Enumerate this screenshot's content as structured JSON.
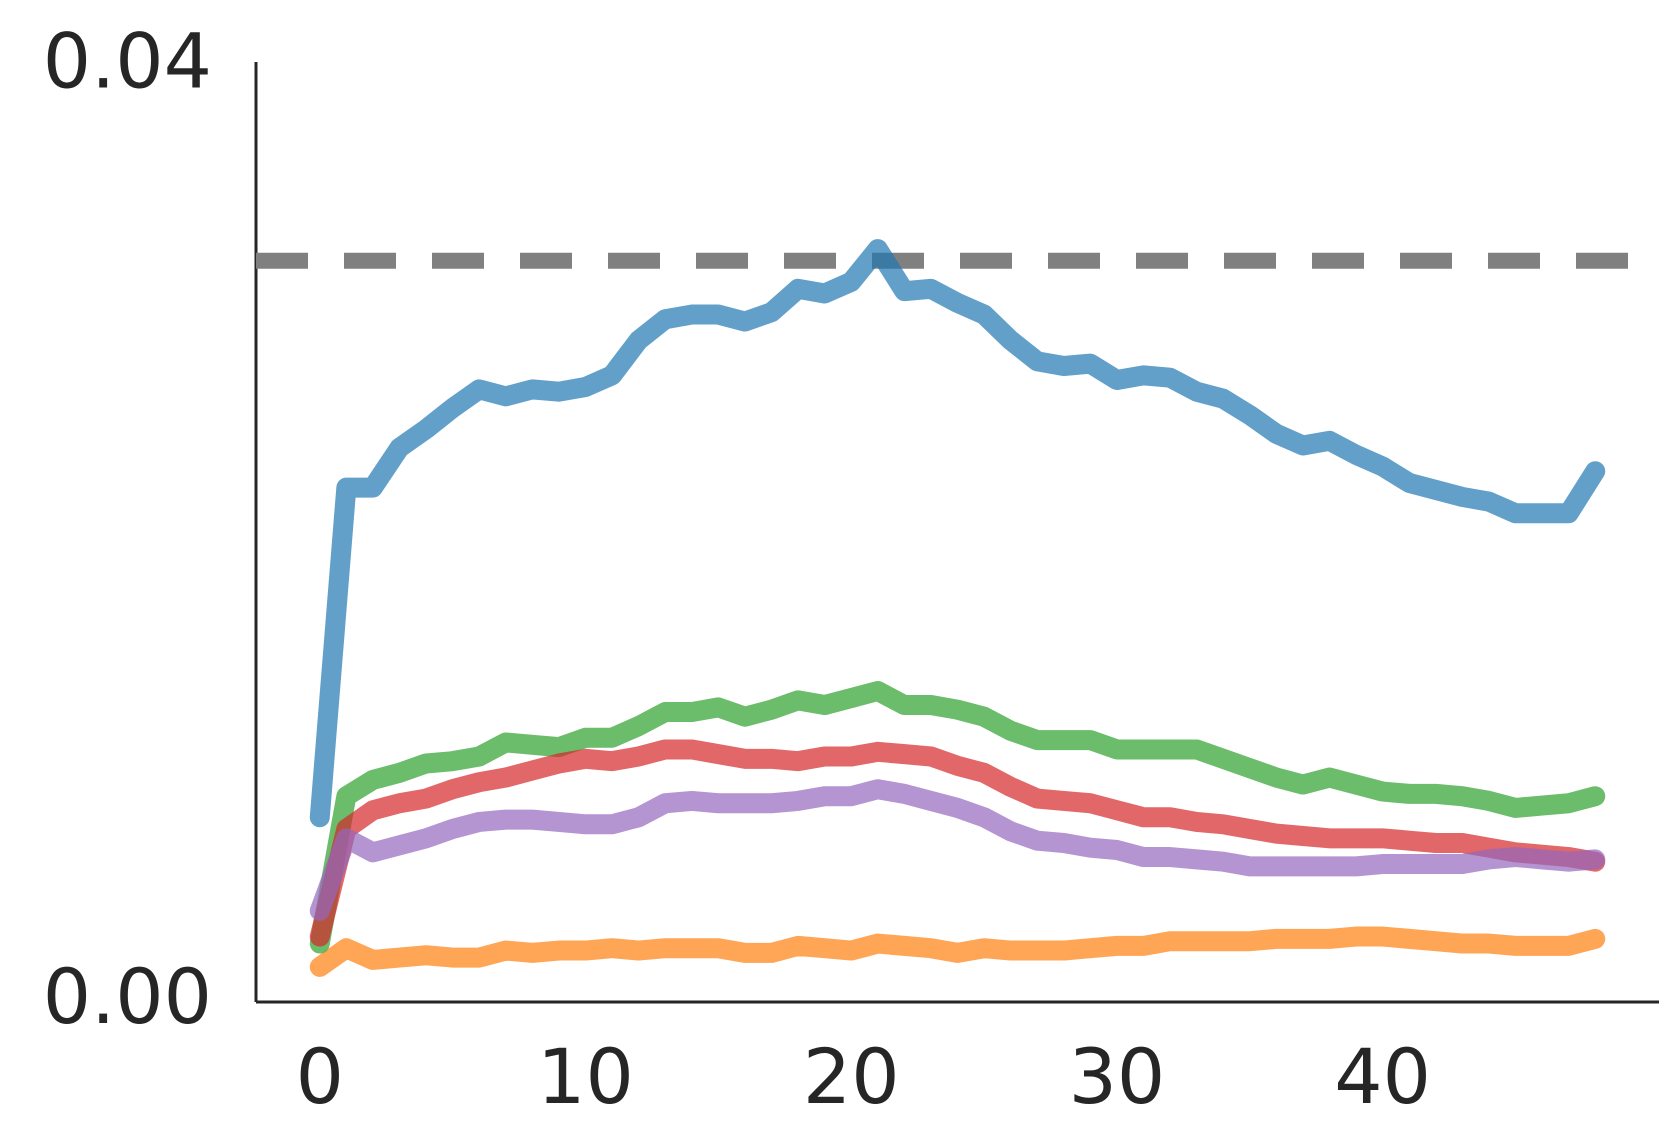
{
  "chart_data": {
    "type": "line",
    "x": [
      0,
      1,
      2,
      3,
      4,
      5,
      6,
      7,
      8,
      9,
      10,
      11,
      12,
      13,
      14,
      15,
      16,
      17,
      18,
      19,
      20,
      21,
      22,
      23,
      24,
      25,
      26,
      27,
      28,
      29,
      30,
      31,
      32,
      33,
      34,
      35,
      36,
      37,
      38,
      39,
      40,
      41,
      42,
      43,
      44,
      45,
      46,
      47,
      48
    ],
    "series": [
      {
        "color": "#1f77b4",
        "values": [
          0.0079,
          0.022,
          0.022,
          0.0237,
          0.0245,
          0.0254,
          0.0262,
          0.0259,
          0.0262,
          0.0261,
          0.0263,
          0.0268,
          0.0283,
          0.0292,
          0.0294,
          0.0294,
          0.0291,
          0.0295,
          0.0305,
          0.0303,
          0.0308,
          0.0322,
          0.0304,
          0.0305,
          0.0299,
          0.0294,
          0.0283,
          0.0274,
          0.0272,
          0.0273,
          0.0266,
          0.0268,
          0.0267,
          0.0261,
          0.0258,
          0.0251,
          0.0243,
          0.0238,
          0.024,
          0.0234,
          0.0229,
          0.0222,
          0.0219,
          0.0216,
          0.0214,
          0.0209,
          0.0209,
          0.0209,
          0.0227
        ]
      },
      {
        "color": "#ff7f0e",
        "values": [
          0.0015,
          0.0023,
          0.0018,
          0.0019,
          0.002,
          0.0019,
          0.0019,
          0.0022,
          0.0021,
          0.0022,
          0.0022,
          0.0023,
          0.0022,
          0.0023,
          0.0023,
          0.0023,
          0.0021,
          0.0021,
          0.0024,
          0.0023,
          0.0022,
          0.0025,
          0.0024,
          0.0023,
          0.0021,
          0.0023,
          0.0022,
          0.0022,
          0.0022,
          0.0023,
          0.0024,
          0.0024,
          0.0026,
          0.0026,
          0.0026,
          0.0026,
          0.0027,
          0.0027,
          0.0027,
          0.0028,
          0.0028,
          0.0027,
          0.0026,
          0.0025,
          0.0025,
          0.0024,
          0.0024,
          0.0024,
          0.0027
        ]
      },
      {
        "color": "#2ca02c",
        "values": [
          0.0025,
          0.0088,
          0.0095,
          0.0098,
          0.0102,
          0.0103,
          0.0105,
          0.0111,
          0.011,
          0.0109,
          0.0113,
          0.0113,
          0.0118,
          0.0124,
          0.0124,
          0.0126,
          0.0122,
          0.0125,
          0.0129,
          0.0127,
          0.013,
          0.0133,
          0.0127,
          0.0127,
          0.0125,
          0.0122,
          0.0116,
          0.0112,
          0.0112,
          0.0112,
          0.0108,
          0.0108,
          0.0108,
          0.0108,
          0.0104,
          0.01,
          0.0096,
          0.0093,
          0.0096,
          0.0093,
          0.009,
          0.0089,
          0.0089,
          0.0088,
          0.0086,
          0.0083,
          0.0084,
          0.0085,
          0.0088
        ]
      },
      {
        "color": "#d62728",
        "values": [
          0.0028,
          0.0074,
          0.0082,
          0.0085,
          0.0087,
          0.0091,
          0.0094,
          0.0096,
          0.0099,
          0.0102,
          0.0104,
          0.0103,
          0.0105,
          0.0108,
          0.0108,
          0.0106,
          0.0104,
          0.0104,
          0.0103,
          0.0105,
          0.0105,
          0.0107,
          0.0106,
          0.0105,
          0.0101,
          0.0098,
          0.0092,
          0.0087,
          0.0086,
          0.0085,
          0.0082,
          0.0079,
          0.0079,
          0.0077,
          0.0076,
          0.0074,
          0.0072,
          0.0071,
          0.007,
          0.007,
          0.007,
          0.0069,
          0.0068,
          0.0068,
          0.0066,
          0.0064,
          0.0063,
          0.0062,
          0.006
        ]
      },
      {
        "color": "#9467bd",
        "values": [
          0.0039,
          0.007,
          0.0064,
          0.0067,
          0.007,
          0.0074,
          0.0077,
          0.0078,
          0.0078,
          0.0077,
          0.0076,
          0.0076,
          0.0079,
          0.0085,
          0.0086,
          0.0085,
          0.0085,
          0.0085,
          0.0086,
          0.0088,
          0.0088,
          0.0091,
          0.0089,
          0.0086,
          0.0083,
          0.0079,
          0.0073,
          0.0069,
          0.0068,
          0.0066,
          0.0065,
          0.0062,
          0.0062,
          0.0061,
          0.006,
          0.0058,
          0.0058,
          0.0058,
          0.0058,
          0.0058,
          0.0059,
          0.0059,
          0.0059,
          0.0059,
          0.0061,
          0.0062,
          0.0061,
          0.006,
          0.0061
        ]
      }
    ],
    "hline": {
      "value": 0.0317,
      "color": "#808080"
    },
    "xlim": [
      -2.4,
      50.4
    ],
    "ylim": [
      0,
      0.0402
    ],
    "xticks": [
      0,
      10,
      20,
      30,
      40
    ],
    "yticks": [
      {
        "value": 0,
        "label": "0.00"
      },
      0.04
    ]
  }
}
